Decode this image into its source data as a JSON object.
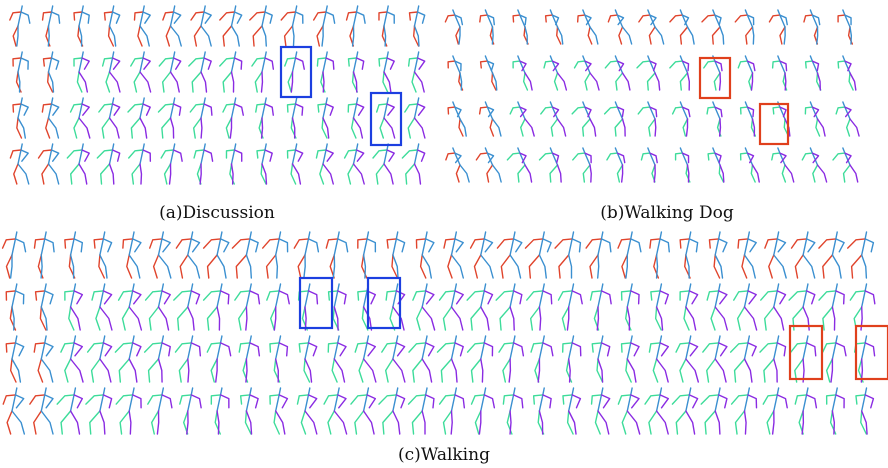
{
  "captions": {
    "a": "(a)Discussion",
    "b": "(b)Walking Dog",
    "c": "(c)Walking"
  }
}
